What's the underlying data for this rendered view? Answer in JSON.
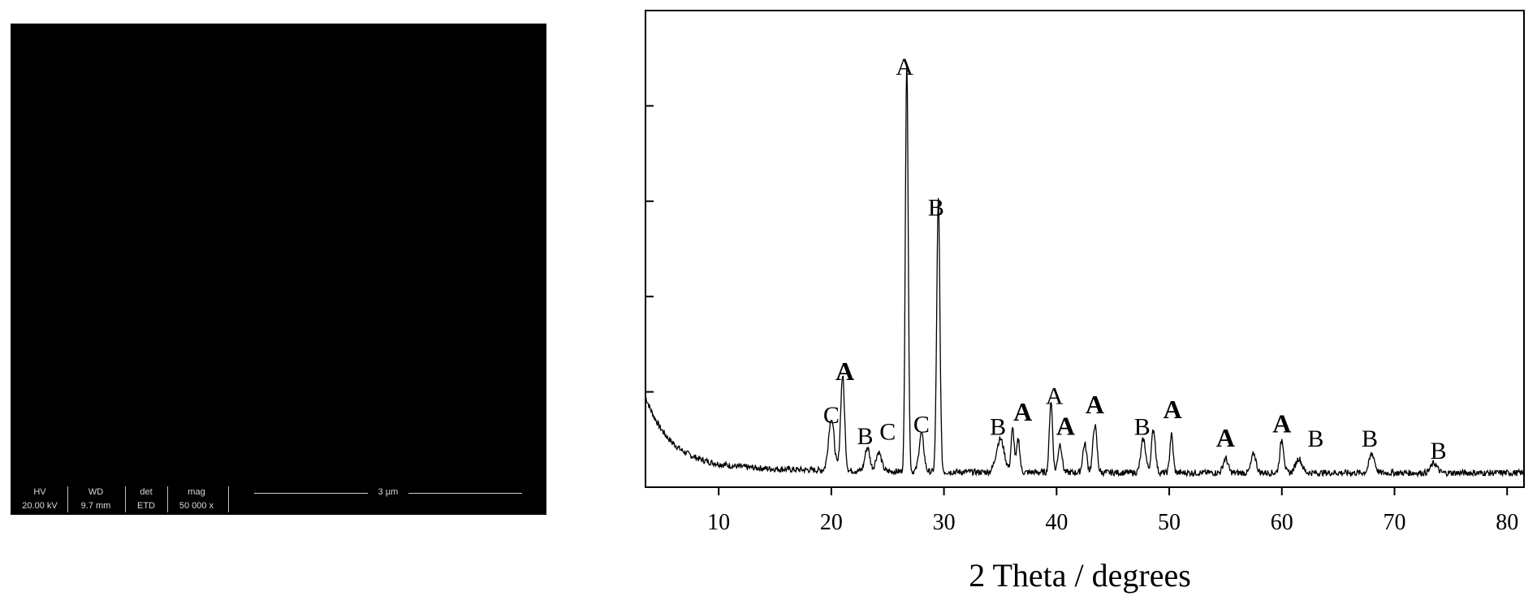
{
  "sem_panel": {
    "headers": [
      "HV",
      "WD",
      "det",
      "mag"
    ],
    "values": [
      "20.00 kV",
      "9.7 mm",
      "ETD",
      "50 000 x"
    ],
    "scale_label": "3 µm",
    "background": "#000000"
  },
  "chart_data": {
    "type": "line",
    "xlabel": "2 Theta / degrees",
    "ylabel": "",
    "xlim": [
      3.5,
      81.5
    ],
    "ylim": [
      0,
      1
    ],
    "x_ticks": [
      10,
      20,
      30,
      40,
      50,
      60,
      70,
      80
    ],
    "y_ticks": [
      0.2,
      0.4,
      0.6,
      0.8
    ],
    "grid": false,
    "line_color": "#000000",
    "peaks": [
      {
        "x": 20.0,
        "y": 0.11,
        "w": 0.35
      },
      {
        "x": 21.0,
        "y": 0.2,
        "w": 0.25
      },
      {
        "x": 23.2,
        "y": 0.05,
        "w": 0.3
      },
      {
        "x": 24.2,
        "y": 0.04,
        "w": 0.35
      },
      {
        "x": 26.7,
        "y": 0.86,
        "w": 0.18
      },
      {
        "x": 28.0,
        "y": 0.08,
        "w": 0.3
      },
      {
        "x": 29.5,
        "y": 0.57,
        "w": 0.2
      },
      {
        "x": 35.0,
        "y": 0.07,
        "w": 0.5
      },
      {
        "x": 36.1,
        "y": 0.09,
        "w": 0.2
      },
      {
        "x": 36.6,
        "y": 0.07,
        "w": 0.2
      },
      {
        "x": 39.5,
        "y": 0.15,
        "w": 0.2
      },
      {
        "x": 40.3,
        "y": 0.06,
        "w": 0.25
      },
      {
        "x": 42.5,
        "y": 0.06,
        "w": 0.25
      },
      {
        "x": 43.4,
        "y": 0.1,
        "w": 0.25
      },
      {
        "x": 47.7,
        "y": 0.07,
        "w": 0.3
      },
      {
        "x": 48.6,
        "y": 0.09,
        "w": 0.25
      },
      {
        "x": 50.2,
        "y": 0.08,
        "w": 0.2
      },
      {
        "x": 55.0,
        "y": 0.03,
        "w": 0.3
      },
      {
        "x": 57.5,
        "y": 0.04,
        "w": 0.3
      },
      {
        "x": 60.0,
        "y": 0.07,
        "w": 0.25
      },
      {
        "x": 61.5,
        "y": 0.03,
        "w": 0.4
      },
      {
        "x": 68.0,
        "y": 0.04,
        "w": 0.35
      },
      {
        "x": 73.5,
        "y": 0.02,
        "w": 0.4
      }
    ],
    "annotations": [
      {
        "text": "C",
        "x": 20.0,
        "y": 0.135,
        "bold": false
      },
      {
        "text": "A",
        "x": 21.2,
        "y": 0.225,
        "bold": true
      },
      {
        "text": "B",
        "x": 23.0,
        "y": 0.09,
        "bold": false
      },
      {
        "text": "C",
        "x": 25.0,
        "y": 0.1,
        "bold": false
      },
      {
        "text": "A",
        "x": 26.5,
        "y": 0.865,
        "bold": false
      },
      {
        "text": "C",
        "x": 28.0,
        "y": 0.115,
        "bold": false
      },
      {
        "text": "B",
        "x": 29.3,
        "y": 0.57,
        "bold": false
      },
      {
        "text": "B",
        "x": 34.8,
        "y": 0.11,
        "bold": false
      },
      {
        "text": "A",
        "x": 37.0,
        "y": 0.14,
        "bold": true
      },
      {
        "text": "A",
        "x": 39.8,
        "y": 0.175,
        "bold": false
      },
      {
        "text": "A",
        "x": 40.8,
        "y": 0.11,
        "bold": true
      },
      {
        "text": "A",
        "x": 43.4,
        "y": 0.155,
        "bold": true
      },
      {
        "text": "B",
        "x": 47.6,
        "y": 0.11,
        "bold": false
      },
      {
        "text": "A",
        "x": 50.3,
        "y": 0.145,
        "bold": true
      },
      {
        "text": "A",
        "x": 55.0,
        "y": 0.085,
        "bold": true
      },
      {
        "text": "A",
        "x": 60.0,
        "y": 0.115,
        "bold": true
      },
      {
        "text": "B",
        "x": 63.0,
        "y": 0.085,
        "bold": false
      },
      {
        "text": "B",
        "x": 67.8,
        "y": 0.085,
        "bold": false
      },
      {
        "text": "B",
        "x": 73.9,
        "y": 0.06,
        "bold": false
      }
    ]
  }
}
